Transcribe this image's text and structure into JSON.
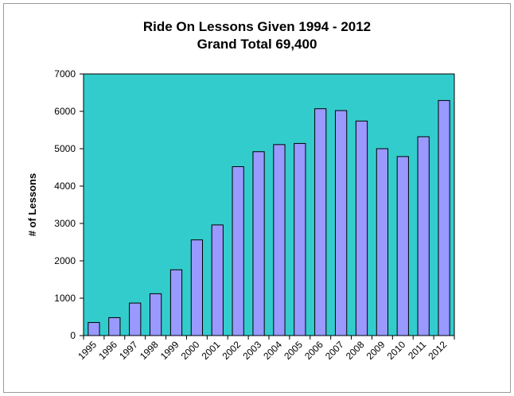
{
  "chart_data": {
    "type": "bar",
    "title": "Ride On Lessons Given 1994 - 2012",
    "subtitle": "Grand Total 69,400",
    "xlabel": "",
    "ylabel": "# of Lessons",
    "ylim": [
      0,
      7000
    ],
    "yticks": [
      "0",
      "1000",
      "2000",
      "3000",
      "4000",
      "5000",
      "6000",
      "7000"
    ],
    "ytick_values": [
      0,
      1000,
      2000,
      3000,
      4000,
      5000,
      6000,
      7000
    ],
    "categories": [
      "1995",
      "1996",
      "1997",
      "1998",
      "1999",
      "2000",
      "2001",
      "2002",
      "2003",
      "2004",
      "2005",
      "2006",
      "2007",
      "2008",
      "2009",
      "2010",
      "2011",
      "2012"
    ],
    "values": [
      350,
      480,
      870,
      1120,
      1760,
      2560,
      2960,
      4520,
      4920,
      5110,
      5140,
      6070,
      6020,
      5740,
      5000,
      4790,
      5320,
      6290
    ],
    "grid": false,
    "legend": "none",
    "colors": {
      "plot_background": "#33CCCC",
      "bar_fill": "#9999FF",
      "bar_stroke": "#000000"
    }
  }
}
